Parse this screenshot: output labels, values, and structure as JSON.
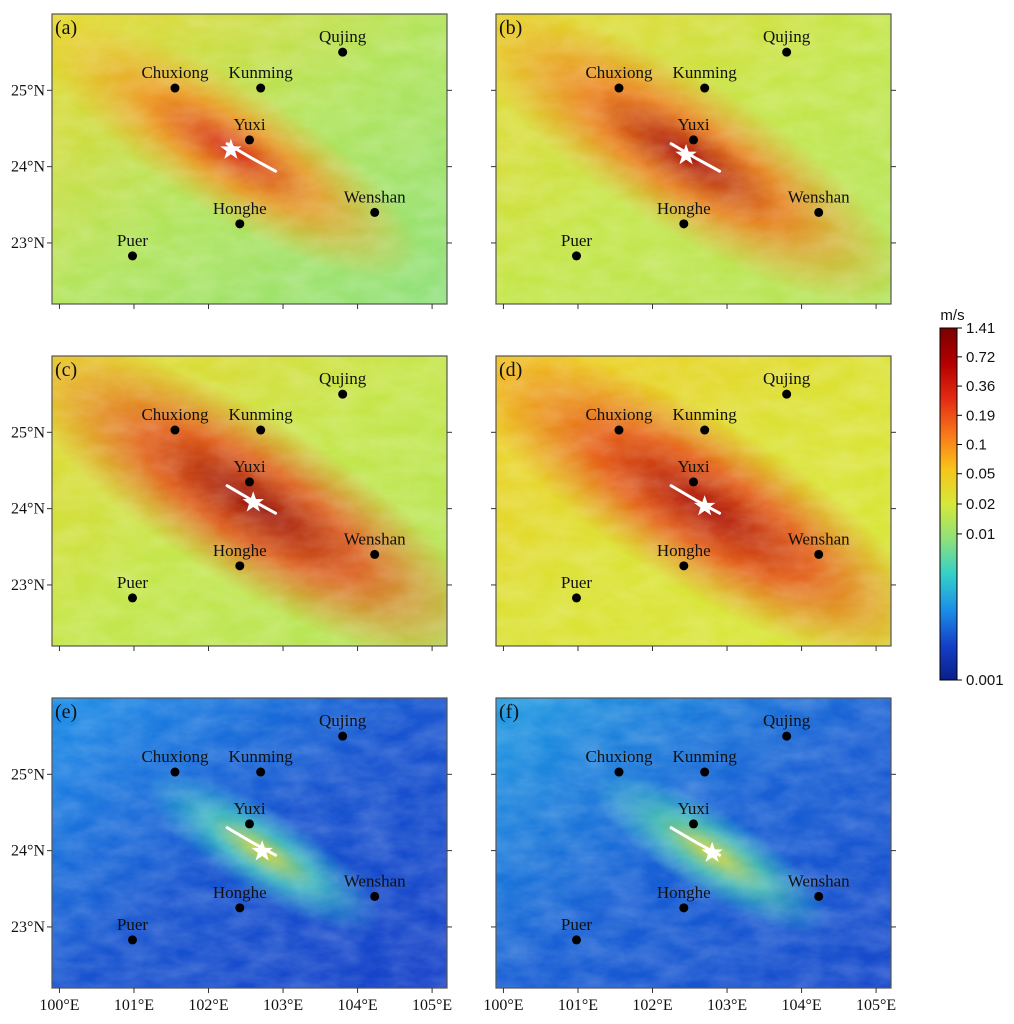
{
  "figure": {
    "panels": [
      {
        "label": "(a)",
        "color": {
          "base": [
            0.55,
            0.35
          ],
          "mid": 0.68,
          "strength": 0.75,
          "width": 0.95
        },
        "fault_highlight": "white"
      },
      {
        "label": "(b)",
        "color": {
          "base": [
            0.55,
            0.4
          ],
          "mid": 0.72,
          "strength": 0.85,
          "width": 1.1
        },
        "fault_highlight": "white"
      },
      {
        "label": "(c)",
        "color": {
          "base": [
            0.55,
            0.4
          ],
          "mid": 0.78,
          "strength": 0.88,
          "width": 1.2
        },
        "fault_highlight": "white"
      },
      {
        "label": "(d)",
        "color": {
          "base": [
            0.58,
            0.45
          ],
          "mid": 0.78,
          "strength": 0.85,
          "width": 1.2
        },
        "fault_highlight": "white"
      },
      {
        "label": "(e)",
        "color": {
          "base": [
            0.2,
            0.05
          ],
          "mid": 0.32,
          "strength": 0.45,
          "width": 0.6
        },
        "fault_highlight": "white"
      },
      {
        "label": "(f)",
        "color": {
          "base": [
            0.22,
            0.06
          ],
          "mid": 0.34,
          "strength": 0.45,
          "width": 0.6
        },
        "fault_highlight": "white"
      }
    ],
    "x_axis": {
      "range": [
        99.9,
        105.2
      ],
      "ticks": [
        100,
        101,
        102,
        103,
        104,
        105
      ],
      "tick_labels": [
        "100°E",
        "101°E",
        "102°E",
        "103°E",
        "104°E",
        "105°E"
      ]
    },
    "y_axis": {
      "range": [
        22.2,
        26.0
      ],
      "ticks": [
        23,
        24,
        25
      ],
      "tick_labels": [
        "23°N",
        "24°N",
        "25°N"
      ]
    },
    "cities": [
      {
        "name": "Qujing",
        "lon": 103.8,
        "lat": 25.5
      },
      {
        "name": "Chuxiong",
        "lon": 101.55,
        "lat": 25.03
      },
      {
        "name": "Kunming",
        "lon": 102.7,
        "lat": 25.03
      },
      {
        "name": "Yuxi",
        "lon": 102.55,
        "lat": 24.35
      },
      {
        "name": "Wenshan",
        "lon": 104.23,
        "lat": 23.4
      },
      {
        "name": "Honghe",
        "lon": 102.42,
        "lat": 23.25
      },
      {
        "name": "Puer",
        "lon": 100.98,
        "lat": 22.83
      }
    ],
    "epicenters": [
      {
        "lon": 102.3,
        "lat": 24.22
      },
      {
        "lon": 102.45,
        "lat": 24.15
      },
      {
        "lon": 102.6,
        "lat": 24.08
      },
      {
        "lon": 102.7,
        "lat": 24.03
      },
      {
        "lon": 102.72,
        "lat": 23.99
      },
      {
        "lon": 102.8,
        "lat": 23.97
      }
    ],
    "fault": {
      "points": [
        [
          102.25,
          24.3
        ],
        [
          102.6,
          24.1
        ],
        [
          102.9,
          23.94
        ]
      ]
    },
    "colorbar": {
      "unit": "m/s",
      "labels": [
        "1.41",
        "0.72",
        "0.36",
        "0.19",
        "0.1",
        "0.05",
        "0.02",
        "0.01",
        "0.001"
      ],
      "colors": [
        "#7a0000",
        "#b30000",
        "#e32a12",
        "#f8761a",
        "#f8c31a",
        "#d6e83a",
        "#8ee07b",
        "#34d0c8",
        "#1c8fe8",
        "#1540c8",
        "#0a1f8a"
      ]
    }
  }
}
